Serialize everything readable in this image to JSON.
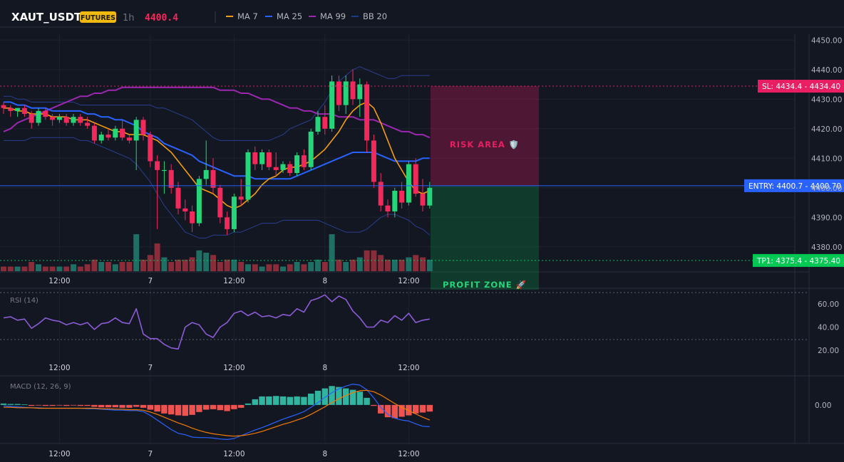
{
  "header": {
    "symbol": "XAUT_USDT",
    "badge": "FUTURES",
    "interval": "1h",
    "price": "4400.4",
    "legend": [
      {
        "label": "MA 7",
        "color": "#f59e0b"
      },
      {
        "label": "MA 25",
        "color": "#2962ff"
      },
      {
        "label": "MA 99",
        "color": "#9c27b0"
      },
      {
        "label": "BB 20",
        "color": "#1e3a8a"
      }
    ]
  },
  "levels": {
    "sl": {
      "label": "SL: 4434.4",
      "axis": "4434.40",
      "value": 4434.4,
      "color": "#e91e63"
    },
    "entry": {
      "label": "ENTRY: 4400.7",
      "axis": "4400.70",
      "value": 4400.7,
      "color": "#2962ff"
    },
    "tp": {
      "label": "TP1: 4375.4",
      "axis": "4375.40",
      "value": 4375.4,
      "color": "#00c853"
    }
  },
  "zones": {
    "risk": "RISK AREA 🛡️",
    "profit": "PROFIT ZONE 🚀"
  },
  "panes": {
    "rsi_label": "RSI (14)",
    "macd_label": "MACD (12, 26, 9)"
  },
  "colors": {
    "bg": "#131722",
    "up": "#26d47a",
    "down": "#f2295b",
    "vol_up": "#1f6f64",
    "vol_down": "#8b2c3a",
    "ma7": "#f59e0b",
    "ma25": "#2962ff",
    "ma99": "#9c27b0",
    "bb": "#2a3f8f",
    "rsi": "#8c5cd6",
    "macd": "#2962ff",
    "signal": "#f57c00",
    "hist_up": "#2fb5a0",
    "hist_down": "#ef5350"
  },
  "chart_data": [
    {
      "type": "candlestick",
      "title": "XAUT_USDT 1h",
      "x_ticks": [
        "12:00",
        "7",
        "12:00",
        "8",
        "12:00"
      ],
      "y_ticks": [
        "4450.00",
        "4440.00",
        "4430.00",
        "4420.00",
        "4410.00",
        "4400.00",
        "4390.00",
        "4380.00"
      ],
      "ylim": [
        4372,
        4452
      ],
      "candles": [
        [
          4428,
          4429,
          4425,
          4427
        ],
        [
          4427,
          4428,
          4424,
          4426
        ],
        [
          4426,
          4427,
          4424,
          4427
        ],
        [
          4427,
          4428,
          4424,
          4425
        ],
        [
          4425,
          4426,
          4420,
          4422
        ],
        [
          4422,
          4427,
          4421,
          4426
        ],
        [
          4426,
          4427,
          4423,
          4424
        ],
        [
          4424,
          4425,
          4421,
          4423
        ],
        [
          4423,
          4425,
          4422,
          4424
        ],
        [
          4424,
          4425,
          4421,
          4422
        ],
        [
          4422,
          4425,
          4421,
          4424
        ],
        [
          4424,
          4425,
          4421,
          4422
        ],
        [
          4422,
          4424,
          4420,
          4421
        ],
        [
          4421,
          4422,
          4415,
          4416
        ],
        [
          4416,
          4419,
          4415,
          4418
        ],
        [
          4418,
          4420,
          4416,
          4417
        ],
        [
          4417,
          4421,
          4416,
          4420
        ],
        [
          4420,
          4423,
          4416,
          4417
        ],
        [
          4417,
          4418,
          4415,
          4416
        ],
        [
          4416,
          4424,
          4406,
          4423
        ],
        [
          4423,
          4424,
          4416,
          4418
        ],
        [
          4418,
          4419,
          4407,
          4409
        ],
        [
          4409,
          4411,
          4386,
          4406
        ],
        [
          4406,
          4409,
          4398,
          4406
        ],
        [
          4406,
          4408,
          4398,
          4400
        ],
        [
          4400,
          4402,
          4391,
          4393
        ],
        [
          4393,
          4396,
          4389,
          4392
        ],
        [
          4392,
          4394,
          4385,
          4388
        ],
        [
          4388,
          4404,
          4387,
          4403
        ],
        [
          4403,
          4416,
          4401,
          4406
        ],
        [
          4406,
          4410,
          4398,
          4400
        ],
        [
          4400,
          4401,
          4388,
          4390
        ],
        [
          4390,
          4392,
          4384,
          4386
        ],
        [
          4386,
          4398,
          4385,
          4397
        ],
        [
          4397,
          4403,
          4394,
          4396
        ],
        [
          4396,
          4413,
          4395,
          4412
        ],
        [
          4412,
          4414,
          4406,
          4408
        ],
        [
          4408,
          4413,
          4406,
          4412
        ],
        [
          4412,
          4413,
          4406,
          4407
        ],
        [
          4407,
          4412,
          4404,
          4406
        ],
        [
          4406,
          4409,
          4405,
          4408
        ],
        [
          4408,
          4409,
          4404,
          4405
        ],
        [
          4405,
          4412,
          4404,
          4411
        ],
        [
          4411,
          4413,
          4406,
          4407
        ],
        [
          4407,
          4420,
          4406,
          4419
        ],
        [
          4419,
          4426,
          4418,
          4424
        ],
        [
          4424,
          4428,
          4418,
          4420
        ],
        [
          4420,
          4438,
          4419,
          4436
        ],
        [
          4436,
          4438,
          4426,
          4428
        ],
        [
          4428,
          4438,
          4425,
          4436
        ],
        [
          4436,
          4440,
          4428,
          4430
        ],
        [
          4430,
          4437,
          4424,
          4435
        ],
        [
          4435,
          4436,
          4412,
          4416
        ],
        [
          4416,
          4418,
          4400,
          4402
        ],
        [
          4402,
          4405,
          4392,
          4394
        ],
        [
          4394,
          4396,
          4390,
          4392
        ],
        [
          4392,
          4400,
          4390,
          4399
        ],
        [
          4399,
          4402,
          4393,
          4395
        ],
        [
          4395,
          4409,
          4394,
          4408
        ],
        [
          4408,
          4410,
          4397,
          4398
        ],
        [
          4398,
          4403,
          4392,
          4394
        ],
        [
          4394,
          4402,
          4393,
          4400
        ]
      ],
      "volumes": [
        2,
        2,
        2,
        2,
        4,
        3,
        2,
        2,
        2,
        2,
        3,
        2,
        3,
        5,
        4,
        4,
        3,
        4,
        4,
        16,
        5,
        7,
        12,
        6,
        4,
        5,
        5,
        6,
        9,
        8,
        7,
        4,
        5,
        5,
        4,
        3,
        3,
        2,
        3,
        3,
        2,
        3,
        4,
        3,
        4,
        5,
        4,
        16,
        5,
        4,
        5,
        6,
        9,
        9,
        7,
        5,
        5,
        5,
        6,
        7,
        6,
        5
      ],
      "series": [
        {
          "name": "MA 7",
          "values": [
            4427,
            4427,
            4426,
            4426,
            4425,
            4425,
            4425,
            4424,
            4424,
            4424,
            4423,
            4423,
            4423,
            4422,
            4421,
            4420,
            4419,
            4419,
            4418,
            4418,
            4418,
            4417,
            4416,
            4414,
            4412,
            4409,
            4406,
            4403,
            4400,
            4399,
            4398,
            4396,
            4394,
            4393,
            4394,
            4396,
            4398,
            4401,
            4403,
            4404,
            4406,
            4407,
            4407,
            4408,
            4409,
            4411,
            4413,
            4416,
            4419,
            4423,
            4426,
            4428,
            4429,
            4427,
            4422,
            4416,
            4410,
            4406,
            4402,
            4399,
            4398,
            4399
          ]
        },
        {
          "name": "MA 25",
          "values": [
            4429,
            4429,
            4428,
            4428,
            4427,
            4427,
            4427,
            4426,
            4426,
            4426,
            4426,
            4426,
            4425,
            4425,
            4424,
            4424,
            4423,
            4423,
            4422,
            4421,
            4419,
            4418,
            4417,
            4415,
            4414,
            4413,
            4412,
            4411,
            4409,
            4408,
            4407,
            4406,
            4405,
            4404,
            4404,
            4404,
            4403,
            4403,
            4403,
            4403,
            4403,
            4403,
            4404,
            4405,
            4406,
            4407,
            4408,
            4409,
            4410,
            4411,
            4412,
            4412,
            4412,
            4412,
            4411,
            4410,
            4409,
            4409,
            4409,
            4409,
            4410,
            4410
          ]
        },
        {
          "name": "MA 99",
          "values": [
            4419,
            4420,
            4422,
            4423,
            4424,
            4425,
            4426,
            4427,
            4428,
            4429,
            4430,
            4431,
            4431,
            4432,
            4432,
            4433,
            4433,
            4434,
            4434,
            4434,
            4434,
            4434,
            4434,
            4434,
            4434,
            4434,
            4434,
            4434,
            4434,
            4434,
            4434,
            4433,
            4433,
            4433,
            4432,
            4432,
            4431,
            4430,
            4430,
            4429,
            4428,
            4427,
            4427,
            4426,
            4426,
            4425,
            4425,
            4425,
            4424,
            4424,
            4424,
            4423,
            4423,
            4423,
            4422,
            4421,
            4420,
            4419,
            4419,
            4418,
            4418,
            4417
          ]
        },
        {
          "name": "BB upper",
          "values": [
            4431,
            4431,
            4430,
            4430,
            4429,
            4429,
            4429,
            4429,
            4429,
            4429,
            4429,
            4428,
            4428,
            4428,
            4428,
            4428,
            4428,
            4428,
            4428,
            4428,
            4428,
            4428,
            4427,
            4427,
            4426,
            4425,
            4424,
            4423,
            4421,
            4419,
            4417,
            4416,
            4416,
            4416,
            4416,
            4416,
            4416,
            4416,
            4416,
            4417,
            4418,
            4420,
            4421,
            4422,
            4423,
            4426,
            4429,
            4433,
            4436,
            4438,
            4440,
            4441,
            4440,
            4439,
            4438,
            4437,
            4437,
            4438,
            4438,
            4438,
            4438,
            4438
          ]
        },
        {
          "name": "BB lower",
          "values": [
            4416,
            4416,
            4416,
            4416,
            4417,
            4417,
            4417,
            4417,
            4417,
            4417,
            4417,
            4416,
            4416,
            4415,
            4414,
            4413,
            4412,
            4411,
            4410,
            4408,
            4405,
            4402,
            4398,
            4394,
            4391,
            4388,
            4385,
            4384,
            4383,
            4383,
            4384,
            4384,
            4384,
            4385,
            4385,
            4386,
            4387,
            4388,
            4388,
            4388,
            4389,
            4389,
            4389,
            4389,
            4389,
            4389,
            4388,
            4387,
            4386,
            4385,
            4385,
            4385,
            4386,
            4388,
            4390,
            4391,
            4391,
            4390,
            4389,
            4387,
            4386,
            4384
          ]
        }
      ]
    },
    {
      "type": "line",
      "title": "RSI (14)",
      "y_ticks": [
        "60.00",
        "40.00",
        "20.00"
      ],
      "ylim": [
        15,
        70
      ],
      "series": [
        {
          "name": "RSI",
          "values": [
            48,
            49,
            46,
            47,
            39,
            43,
            48,
            46,
            45,
            42,
            44,
            42,
            44,
            38,
            43,
            44,
            48,
            44,
            43,
            56,
            34,
            30,
            30,
            25,
            22,
            21,
            40,
            44,
            42,
            34,
            31,
            40,
            44,
            52,
            54,
            50,
            53,
            49,
            50,
            48,
            51,
            50,
            56,
            53,
            63,
            65,
            68,
            62,
            67,
            64,
            54,
            48,
            40,
            40,
            46,
            44,
            50,
            46,
            52,
            44,
            46,
            47
          ]
        }
      ]
    },
    {
      "type": "bar",
      "title": "MACD (12, 26, 9)",
      "y_ticks": [
        "0.00"
      ],
      "ylim": [
        -8,
        6
      ],
      "series": [
        {
          "name": "Histogram",
          "values": [
            0.3,
            0.2,
            0.2,
            0.1,
            -0.2,
            -0.1,
            -0.2,
            -0.2,
            -0.1,
            -0.2,
            -0.1,
            -0.2,
            -0.2,
            -0.4,
            -0.5,
            -0.5,
            -0.5,
            -0.6,
            -0.6,
            -0.4,
            -0.6,
            -1.0,
            -1.4,
            -1.8,
            -2.0,
            -2.2,
            -2.3,
            -2.1,
            -1.5,
            -1.0,
            -0.9,
            -1.1,
            -1.3,
            -0.9,
            -0.6,
            0.3,
            1.2,
            1.8,
            1.8,
            1.9,
            1.8,
            1.7,
            1.8,
            1.7,
            2.4,
            3.0,
            3.5,
            4.0,
            3.8,
            3.5,
            3.2,
            2.8,
            1.5,
            -0.2,
            -1.8,
            -2.6,
            -2.8,
            -2.5,
            -2.2,
            -1.8,
            -1.6,
            -1.4
          ]
        },
        {
          "name": "MACD",
          "values": [
            -0.2,
            -0.3,
            -0.4,
            -0.5,
            -0.6,
            -0.6,
            -0.7,
            -0.7,
            -0.7,
            -0.7,
            -0.7,
            -0.7,
            -0.8,
            -0.8,
            -0.9,
            -1.0,
            -1.1,
            -1.1,
            -1.2,
            -1.2,
            -1.4,
            -2.2,
            -3.2,
            -4.2,
            -5.2,
            -6.0,
            -6.3,
            -6.8,
            -6.9,
            -6.9,
            -7.0,
            -7.2,
            -7.3,
            -7.1,
            -6.5,
            -5.9,
            -5.3,
            -4.8,
            -4.2,
            -3.6,
            -3.0,
            -2.5,
            -2.0,
            -1.4,
            -0.5,
            0.5,
            1.6,
            2.6,
            3.4,
            4.0,
            4.4,
            4.2,
            3.2,
            1.5,
            -0.5,
            -2.0,
            -2.8,
            -3.2,
            -3.4,
            -4.0,
            -4.5,
            -4.6
          ]
        },
        {
          "name": "Signal",
          "values": [
            -0.5,
            -0.5,
            -0.6,
            -0.6,
            -0.6,
            -0.7,
            -0.7,
            -0.7,
            -0.7,
            -0.7,
            -0.7,
            -0.7,
            -0.7,
            -0.7,
            -0.8,
            -0.8,
            -0.9,
            -0.9,
            -1.0,
            -1.0,
            -1.1,
            -1.5,
            -2.0,
            -2.6,
            -3.2,
            -3.8,
            -4.3,
            -4.9,
            -5.4,
            -5.8,
            -6.1,
            -6.3,
            -6.5,
            -6.6,
            -6.5,
            -6.3,
            -6.0,
            -5.6,
            -5.1,
            -4.6,
            -4.1,
            -3.7,
            -3.2,
            -2.7,
            -2.0,
            -1.2,
            -0.4,
            0.5,
            1.3,
            2.0,
            2.6,
            3.0,
            3.1,
            2.8,
            2.1,
            1.2,
            0.3,
            -0.5,
            -1.2,
            -1.9,
            -2.6,
            -3.2
          ]
        }
      ]
    }
  ]
}
